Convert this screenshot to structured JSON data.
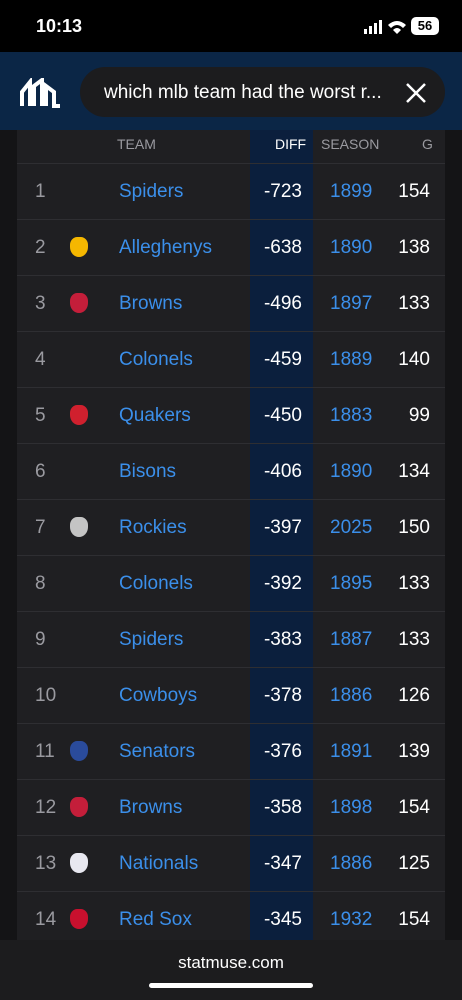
{
  "status": {
    "time": "10:13",
    "battery": "56"
  },
  "search": {
    "query": "which mlb team had the worst r..."
  },
  "table": {
    "header": {
      "team": "TEAM",
      "diff": "DIFF",
      "season": "SEASON",
      "g": "G"
    },
    "rows": [
      {
        "rank": "1",
        "team": "Spiders",
        "diff": "-723",
        "season": "1899",
        "g": "154"
      },
      {
        "rank": "2",
        "team": "Alleghenys",
        "diff": "-638",
        "season": "1890",
        "g": "138",
        "logo": "#f5b700"
      },
      {
        "rank": "3",
        "team": "Browns",
        "diff": "-496",
        "season": "1897",
        "g": "133",
        "logo": "#c41e3a"
      },
      {
        "rank": "4",
        "team": "Colonels",
        "diff": "-459",
        "season": "1889",
        "g": "140"
      },
      {
        "rank": "5",
        "team": "Quakers",
        "diff": "-450",
        "season": "1883",
        "g": "99",
        "logo": "#d0202e"
      },
      {
        "rank": "6",
        "team": "Bisons",
        "diff": "-406",
        "season": "1890",
        "g": "134"
      },
      {
        "rank": "7",
        "team": "Rockies",
        "diff": "-397",
        "season": "2025",
        "g": "150",
        "logo": "#c4c4c4"
      },
      {
        "rank": "8",
        "team": "Colonels",
        "diff": "-392",
        "season": "1895",
        "g": "133"
      },
      {
        "rank": "9",
        "team": "Spiders",
        "diff": "-383",
        "season": "1887",
        "g": "133"
      },
      {
        "rank": "10",
        "team": "Cowboys",
        "diff": "-378",
        "season": "1886",
        "g": "126"
      },
      {
        "rank": "11",
        "team": "Senators",
        "diff": "-376",
        "season": "1891",
        "g": "139",
        "logo": "#2a4b9b"
      },
      {
        "rank": "12",
        "team": "Browns",
        "diff": "-358",
        "season": "1898",
        "g": "154",
        "logo": "#c41e3a"
      },
      {
        "rank": "13",
        "team": "Nationals",
        "diff": "-347",
        "season": "1886",
        "g": "125",
        "logo": "#e8e8f0"
      },
      {
        "rank": "14",
        "team": "Red Sox",
        "diff": "-345",
        "season": "1932",
        "g": "154",
        "logo": "#c8102e"
      }
    ]
  },
  "footer": {
    "site": "statmuse.com"
  }
}
